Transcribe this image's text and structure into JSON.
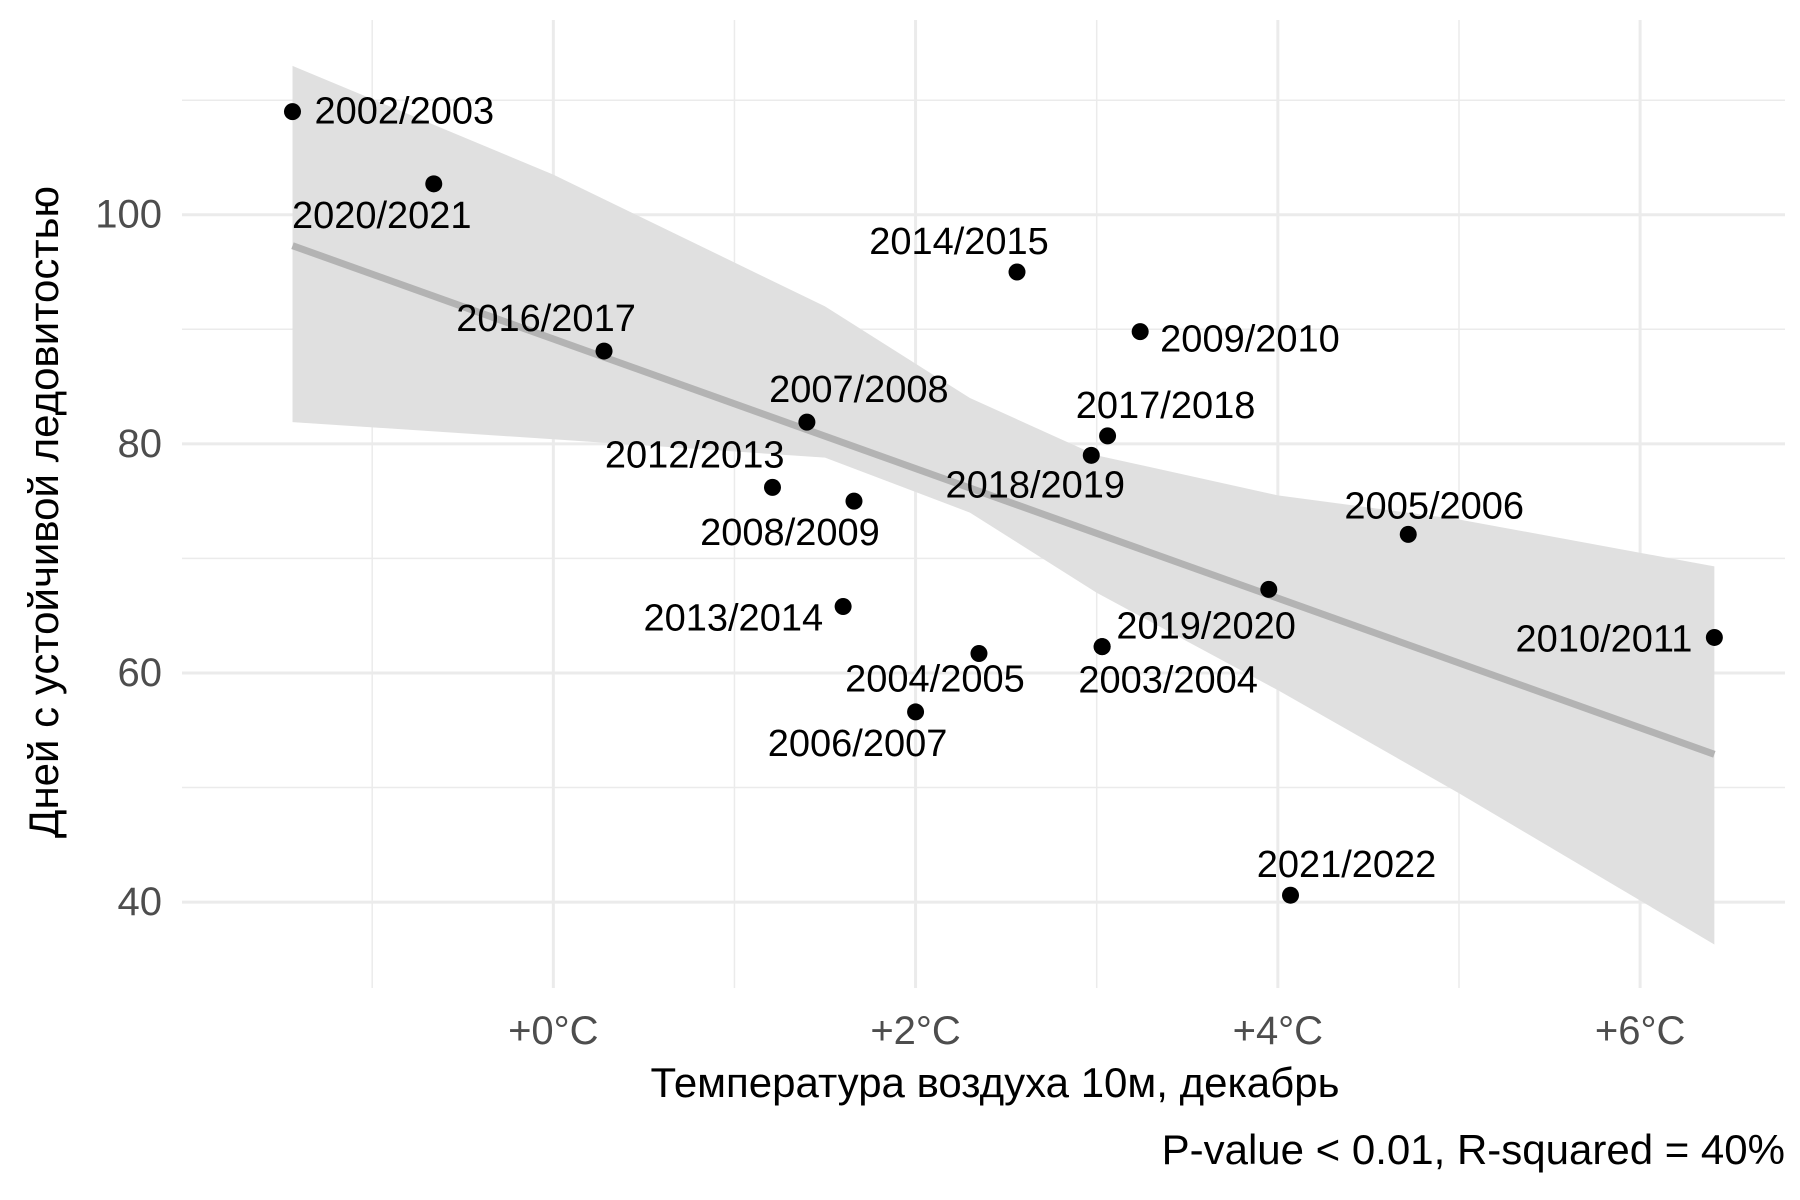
{
  "chart_data": {
    "type": "scatter",
    "title": "",
    "xlabel": "Температура воздуха 10м, декабрь",
    "ylabel": "Дней с устойчивой ледовитостью",
    "caption": "P-value < 0.01, R-squared = 40%",
    "xlim": [
      -2.05,
      6.8
    ],
    "ylim": [
      32.5,
      117
    ],
    "x_ticks": [
      {
        "value": 0,
        "label": "+0°C"
      },
      {
        "value": 2,
        "label": "+2°C"
      },
      {
        "value": 4,
        "label": "+4°C"
      },
      {
        "value": 6,
        "label": "+6°C"
      }
    ],
    "x_minor_gridlines": [
      -1,
      1,
      3,
      5
    ],
    "y_ticks": [
      {
        "value": 40,
        "label": "40"
      },
      {
        "value": 60,
        "label": "60"
      },
      {
        "value": 80,
        "label": "80"
      },
      {
        "value": 100,
        "label": "100"
      }
    ],
    "y_minor_gridlines": [
      50,
      70,
      90,
      110
    ],
    "grid": true,
    "legend": "none",
    "points": [
      {
        "label": "2002/2003",
        "x": -1.44,
        "y": 109.0,
        "label_anchor": "start",
        "label_dx": 22,
        "label_dy": 0
      },
      {
        "label": "2020/2021",
        "x": -0.66,
        "y": 102.7,
        "label_anchor": "middle",
        "label_dx": -52,
        "label_dy": 32
      },
      {
        "label": "2016/2017",
        "x": 0.28,
        "y": 88.1,
        "label_anchor": "middle",
        "label_dx": -58,
        "label_dy": -32
      },
      {
        "label": "2007/2008",
        "x": 1.4,
        "y": 81.9,
        "label_anchor": "middle",
        "label_dx": 52,
        "label_dy": -32
      },
      {
        "label": "2012/2013",
        "x": 1.21,
        "y": 76.2,
        "label_anchor": "end",
        "label_dx": 12,
        "label_dy": -32
      },
      {
        "label": "2008/2009",
        "x": 1.66,
        "y": 75.0,
        "label_anchor": "middle",
        "label_dx": -64,
        "label_dy": 32
      },
      {
        "label": "2013/2014",
        "x": 1.6,
        "y": 65.8,
        "label_anchor": "end",
        "label_dx": -20,
        "label_dy": 12
      },
      {
        "label": "2006/2007",
        "x": 2.0,
        "y": 56.6,
        "label_anchor": "middle",
        "label_dx": -58,
        "label_dy": 32
      },
      {
        "label": "2004/2005",
        "x": 2.35,
        "y": 61.7,
        "label_anchor": "middle",
        "label_dx": -44,
        "label_dy": 26
      },
      {
        "label": "2014/2015",
        "x": 2.56,
        "y": 95.0,
        "label_anchor": "middle",
        "label_dx": -58,
        "label_dy": -30
      },
      {
        "label": "2018/2019",
        "x": 2.97,
        "y": 79.0,
        "label_anchor": "middle",
        "label_dx": -56,
        "label_dy": 30
      },
      {
        "label": "2017/2018",
        "x": 3.06,
        "y": 80.7,
        "label_anchor": "middle",
        "label_dx": 58,
        "label_dy": -30
      },
      {
        "label": "2003/2004",
        "x": 3.03,
        "y": 62.3,
        "label_anchor": "middle",
        "label_dx": 66,
        "label_dy": 34
      },
      {
        "label": "2019/2020",
        "x": 3.03,
        "y": 62.3,
        "label_anchor": "middle",
        "label_dx": 104,
        "label_dy": -20
      },
      {
        "label": "2009/2010",
        "x": 3.24,
        "y": 89.8,
        "label_anchor": "start",
        "label_dx": 20,
        "label_dy": 8
      },
      {
        "label": "2021/2022",
        "x": 4.07,
        "y": 40.6,
        "label_anchor": "middle",
        "label_dx": 56,
        "label_dy": -30
      },
      {
        "label": null,
        "x": 3.95,
        "y": 67.3,
        "label_anchor": "start",
        "label_dx": 0,
        "label_dy": 0
      },
      {
        "label": "2005/2006",
        "x": 4.72,
        "y": 72.1,
        "label_anchor": "middle",
        "label_dx": 26,
        "label_dy": -28
      },
      {
        "label": "2010/2011",
        "x": 6.41,
        "y": 63.1,
        "label_anchor": "end",
        "label_dx": -22,
        "label_dy": 2
      }
    ],
    "trend_line": {
      "x": [
        -1.44,
        6.41
      ],
      "y": [
        97.3,
        52.9
      ],
      "color": "#b3b3b3"
    },
    "confidence_band": {
      "x": [
        -1.44,
        0.0,
        1.5,
        2.3,
        3.0,
        4.0,
        5.0,
        6.41
      ],
      "lower": [
        81.9,
        80.4,
        78.8,
        74.0,
        67.0,
        58.5,
        49.5,
        36.3
      ],
      "upper": [
        113.0,
        103.5,
        92.0,
        84.0,
        79.0,
        75.5,
        73.4,
        69.3
      ],
      "color": "#e0e0e0"
    },
    "point_color": "#000000",
    "grid_color": "#ebebeb"
  }
}
